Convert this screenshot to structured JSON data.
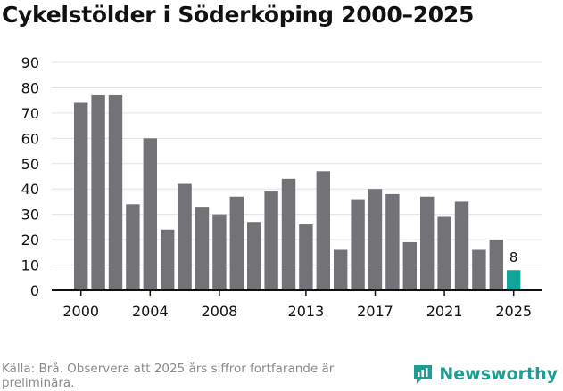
{
  "chart_data": {
    "type": "bar",
    "title": "Cykelstölder i Söderköping 2000–2025",
    "xlabel": "",
    "ylabel": "",
    "ylim": [
      0,
      90
    ],
    "yticks": [
      0,
      10,
      20,
      30,
      40,
      50,
      60,
      70,
      80,
      90
    ],
    "xticks": [
      "2000",
      "2004",
      "2008",
      "2013",
      "2017",
      "2021",
      "2025"
    ],
    "categories": [
      "2000",
      "2001",
      "2002",
      "2003",
      "2004",
      "2005",
      "2006",
      "2007",
      "2008",
      "2009",
      "2010",
      "2011",
      "2012",
      "2013",
      "2014",
      "2015",
      "2016",
      "2017",
      "2018",
      "2019",
      "2020",
      "2021",
      "2022",
      "2023",
      "2024",
      "2025"
    ],
    "values": [
      74,
      77,
      77,
      34,
      60,
      24,
      42,
      33,
      30,
      37,
      27,
      39,
      44,
      26,
      47,
      16,
      36,
      40,
      38,
      19,
      37,
      29,
      35,
      16,
      20,
      8
    ],
    "grid": true,
    "highlight": {
      "category": "2025",
      "label": "8"
    },
    "colors": {
      "bar": "#737277",
      "highlight": "#13a59a",
      "grid": "#e3e3e3",
      "axis": "#111111"
    }
  },
  "footer": {
    "source": "Källa: Brå. Observera att 2025 års siffror fortfarande är preliminära.",
    "brand": "Newsworthy"
  },
  "icons": {
    "brand_icon": "newsworthy-logo-icon"
  }
}
